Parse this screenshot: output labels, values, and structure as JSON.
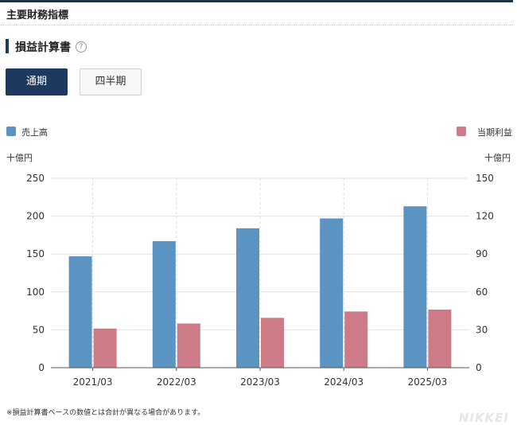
{
  "section_title": "主要財務指標",
  "subsection_title": "損益計算書",
  "help_icon": "?",
  "tabs": [
    {
      "label": "通期",
      "active": true
    },
    {
      "label": "四半期",
      "active": false
    }
  ],
  "colors": {
    "sales": "#5b93c2",
    "profit": "#cd7b87",
    "accent": "#1d3a5e"
  },
  "chart_data": {
    "type": "bar",
    "categories": [
      "2021/03",
      "2022/03",
      "2023/03",
      "2024/03",
      "2025/03"
    ],
    "series": [
      {
        "name": "売上高",
        "axis": "left",
        "values": [
          147,
          167,
          184,
          197,
          213
        ]
      },
      {
        "name": "当期利益",
        "axis": "right",
        "values": [
          31,
          35,
          39.5,
          44.5,
          46
        ]
      }
    ],
    "y_left": {
      "unit": "十億円",
      "ylim": [
        0,
        250
      ],
      "ticks": [
        0,
        50,
        100,
        150,
        200,
        250
      ]
    },
    "y_right": {
      "unit": "十億円",
      "ylim": [
        0,
        150
      ],
      "ticks": [
        0,
        30,
        60,
        90,
        120,
        150
      ]
    },
    "legend": {
      "sales": "売上高",
      "profit": "当期利益"
    },
    "grid": true
  },
  "footnote": "※損益計算書ベースの数値とは合計が異なる場合があります。",
  "brand": "NIKKEI"
}
